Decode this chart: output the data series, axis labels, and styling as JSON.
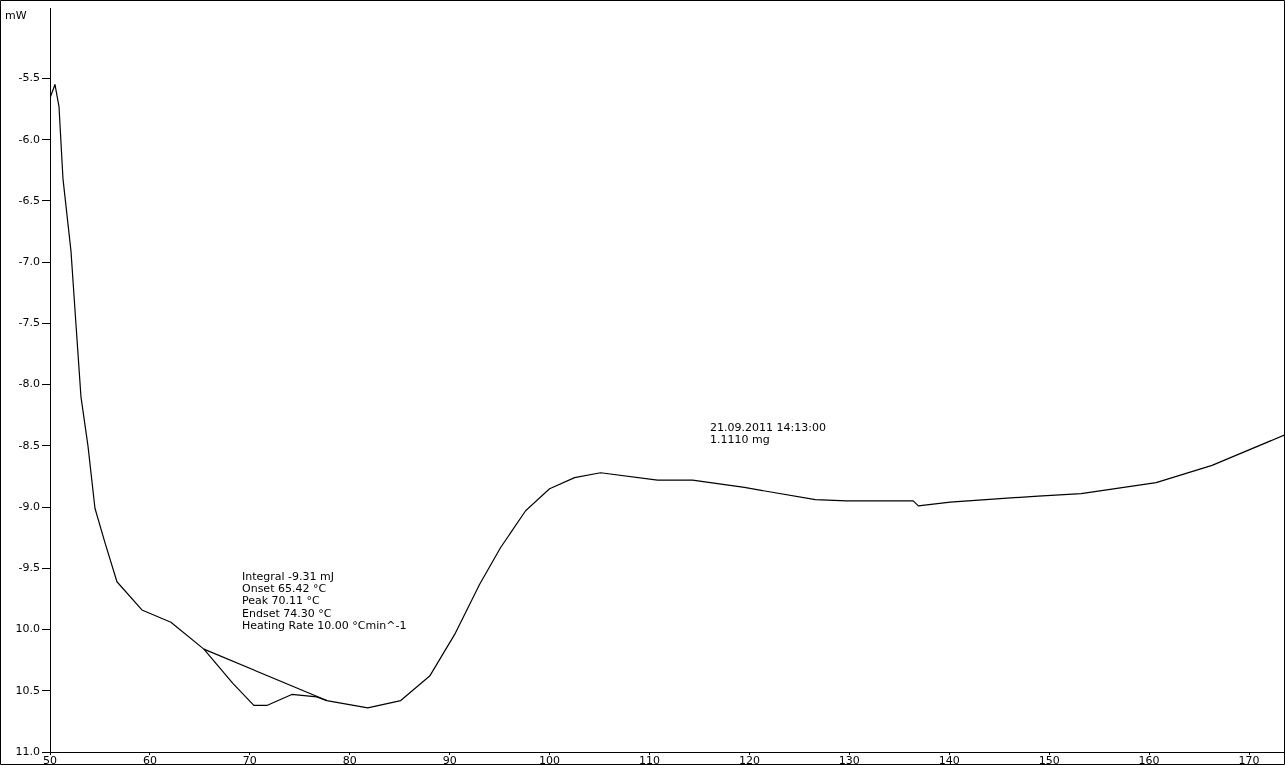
{
  "chart_data": {
    "type": "line",
    "ylabel": "mW",
    "x": [
      50.0,
      50.5,
      50.9,
      51.3,
      52.1,
      52.6,
      53.1,
      53.8,
      54.5,
      55.5,
      56.7,
      59.2,
      62.1,
      65.4,
      68.3,
      70.4,
      71.7,
      74.2,
      76.7,
      77.7,
      81.8,
      85.1,
      88.0,
      90.5,
      93.0,
      95.1,
      97.6,
      100.0,
      102.5,
      105.1,
      110.8,
      114.3,
      119.5,
      126.6,
      129.7,
      136.4,
      136.9,
      140.1,
      148.9,
      153.2,
      160.7,
      166.3,
      173.6
    ],
    "series": [
      {
        "color": "#000000",
        "values": [
          -5.66,
          -5.55,
          -5.73,
          -6.32,
          -6.91,
          -7.51,
          -8.1,
          -8.5,
          -9.01,
          -9.29,
          -9.61,
          -9.84,
          -9.94,
          -10.16,
          -10.44,
          -10.62,
          -10.62,
          -10.53,
          -10.55,
          -10.58,
          -10.64,
          -10.58,
          -10.38,
          -10.04,
          -9.63,
          -9.33,
          -9.03,
          -8.85,
          -8.76,
          -8.72,
          -8.78,
          -8.78,
          -8.84,
          -8.94,
          -8.95,
          -8.95,
          -8.99,
          -8.96,
          -8.91,
          -8.89,
          -8.8,
          -8.66,
          -8.41
        ]
      },
      {
        "color": "#000000",
        "x": [
          65.4,
          77.7
        ],
        "values": [
          -10.16,
          -10.58
        ]
      }
    ],
    "xlim": [
      50,
      173.6
    ],
    "ylim": [
      -11.0,
      -4.93
    ],
    "xticks": [
      50,
      60,
      70,
      80,
      90,
      100,
      110,
      120,
      130,
      140,
      150,
      160,
      170
    ],
    "yticks": [
      -5.5,
      {
        "value": -6.0,
        "label": "-6.0"
      },
      -6.5,
      {
        "value": -7.0,
        "label": "-7.0"
      },
      -7.5,
      {
        "value": -8.0,
        "label": "-8.0"
      },
      -8.5,
      {
        "value": -9.0,
        "label": "-9.0"
      },
      -9.5,
      {
        "value": -10.0,
        "label": "10.0"
      },
      {
        "value": -10.5,
        "label": "10.5"
      },
      {
        "value": -11.0,
        "label": "11.0"
      }
    ],
    "grid": false,
    "legend": false,
    "marker": "none",
    "line_style": "solid",
    "annotations": [
      "Integral -9.31 mJ",
      "Onset 65.42 °C",
      "Peak 70.11 °C",
      "Endset 74.30 °C",
      "Heating Rate 10.00 °Cmin^-1",
      "21.09.2011 14:13:00",
      "1.1110 mg"
    ]
  }
}
